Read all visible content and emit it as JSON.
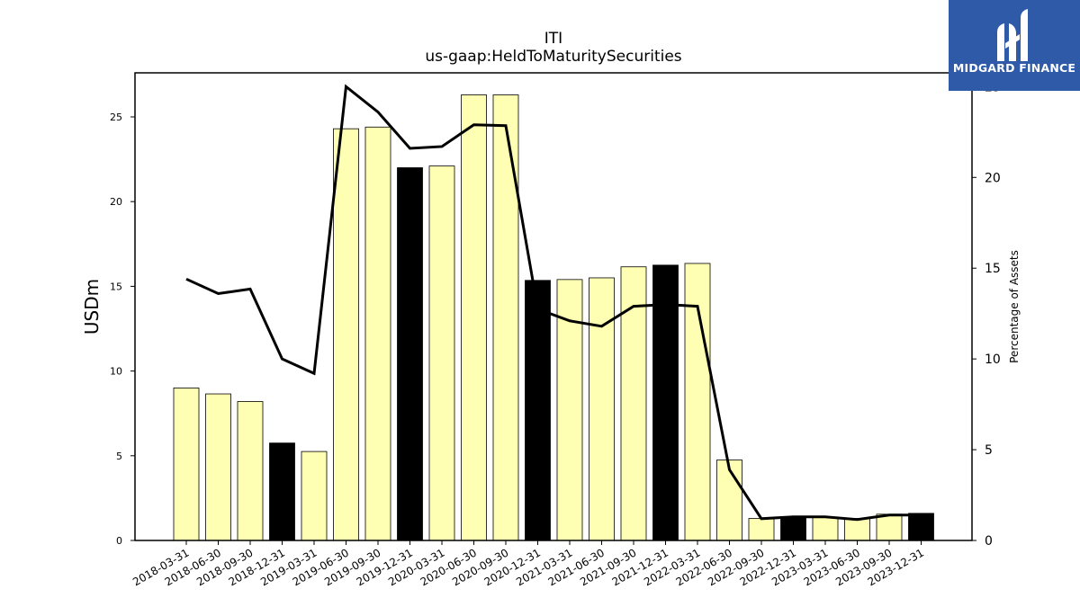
{
  "chart_data": {
    "type": "bar",
    "title": "ITI",
    "subtitle": "us-gaap:HeldToMaturitySecurities",
    "ylabel": "USDm",
    "y2label": "Percentage of Assets",
    "ylim": [
      0,
      27.6
    ],
    "y2lim": [
      0,
      25.76
    ],
    "yticks": [
      0,
      5,
      10,
      15,
      20,
      25
    ],
    "y2ticks": [
      0,
      5,
      10,
      15,
      20,
      25
    ],
    "categories": [
      "2018-03-31",
      "2018-06-30",
      "2018-09-30",
      "2018-12-31",
      "2019-03-31",
      "2019-06-30",
      "2019-09-30",
      "2019-12-31",
      "2020-03-31",
      "2020-06-30",
      "2020-09-30",
      "2020-12-31",
      "2021-03-31",
      "2021-06-30",
      "2021-09-30",
      "2021-12-31",
      "2022-03-31",
      "2022-06-30",
      "2022-09-30",
      "2022-12-31",
      "2023-03-31",
      "2023-06-30",
      "2023-09-30",
      "2023-12-31"
    ],
    "series": [
      {
        "type": "bar",
        "axis": "left",
        "values": [
          9.0,
          8.65,
          8.2,
          5.75,
          5.25,
          24.3,
          24.4,
          22.0,
          22.1,
          26.3,
          26.3,
          15.35,
          15.4,
          15.5,
          16.15,
          16.25,
          16.35,
          4.75,
          1.3,
          1.35,
          1.35,
          1.3,
          1.55,
          1.6
        ],
        "year_end": [
          false,
          false,
          false,
          true,
          false,
          false,
          false,
          true,
          false,
          false,
          false,
          true,
          false,
          false,
          false,
          true,
          false,
          false,
          false,
          true,
          false,
          false,
          false,
          true
        ]
      },
      {
        "type": "line",
        "axis": "right",
        "values": [
          14.4,
          13.6,
          13.85,
          10.0,
          9.2,
          25.0,
          23.6,
          21.6,
          21.7,
          22.9,
          22.85,
          12.75,
          12.1,
          11.8,
          12.9,
          13.0,
          12.9,
          3.9,
          1.2,
          1.3,
          1.3,
          1.15,
          1.4,
          1.4
        ]
      }
    ],
    "colors": {
      "bar": "#ffffb3",
      "bar_year_end": "#000000",
      "line": "#000000",
      "axes": "#000000"
    },
    "grid": false
  },
  "logo": {
    "text": "MIDGARD FINANCE",
    "background": "#2f5aa8"
  }
}
